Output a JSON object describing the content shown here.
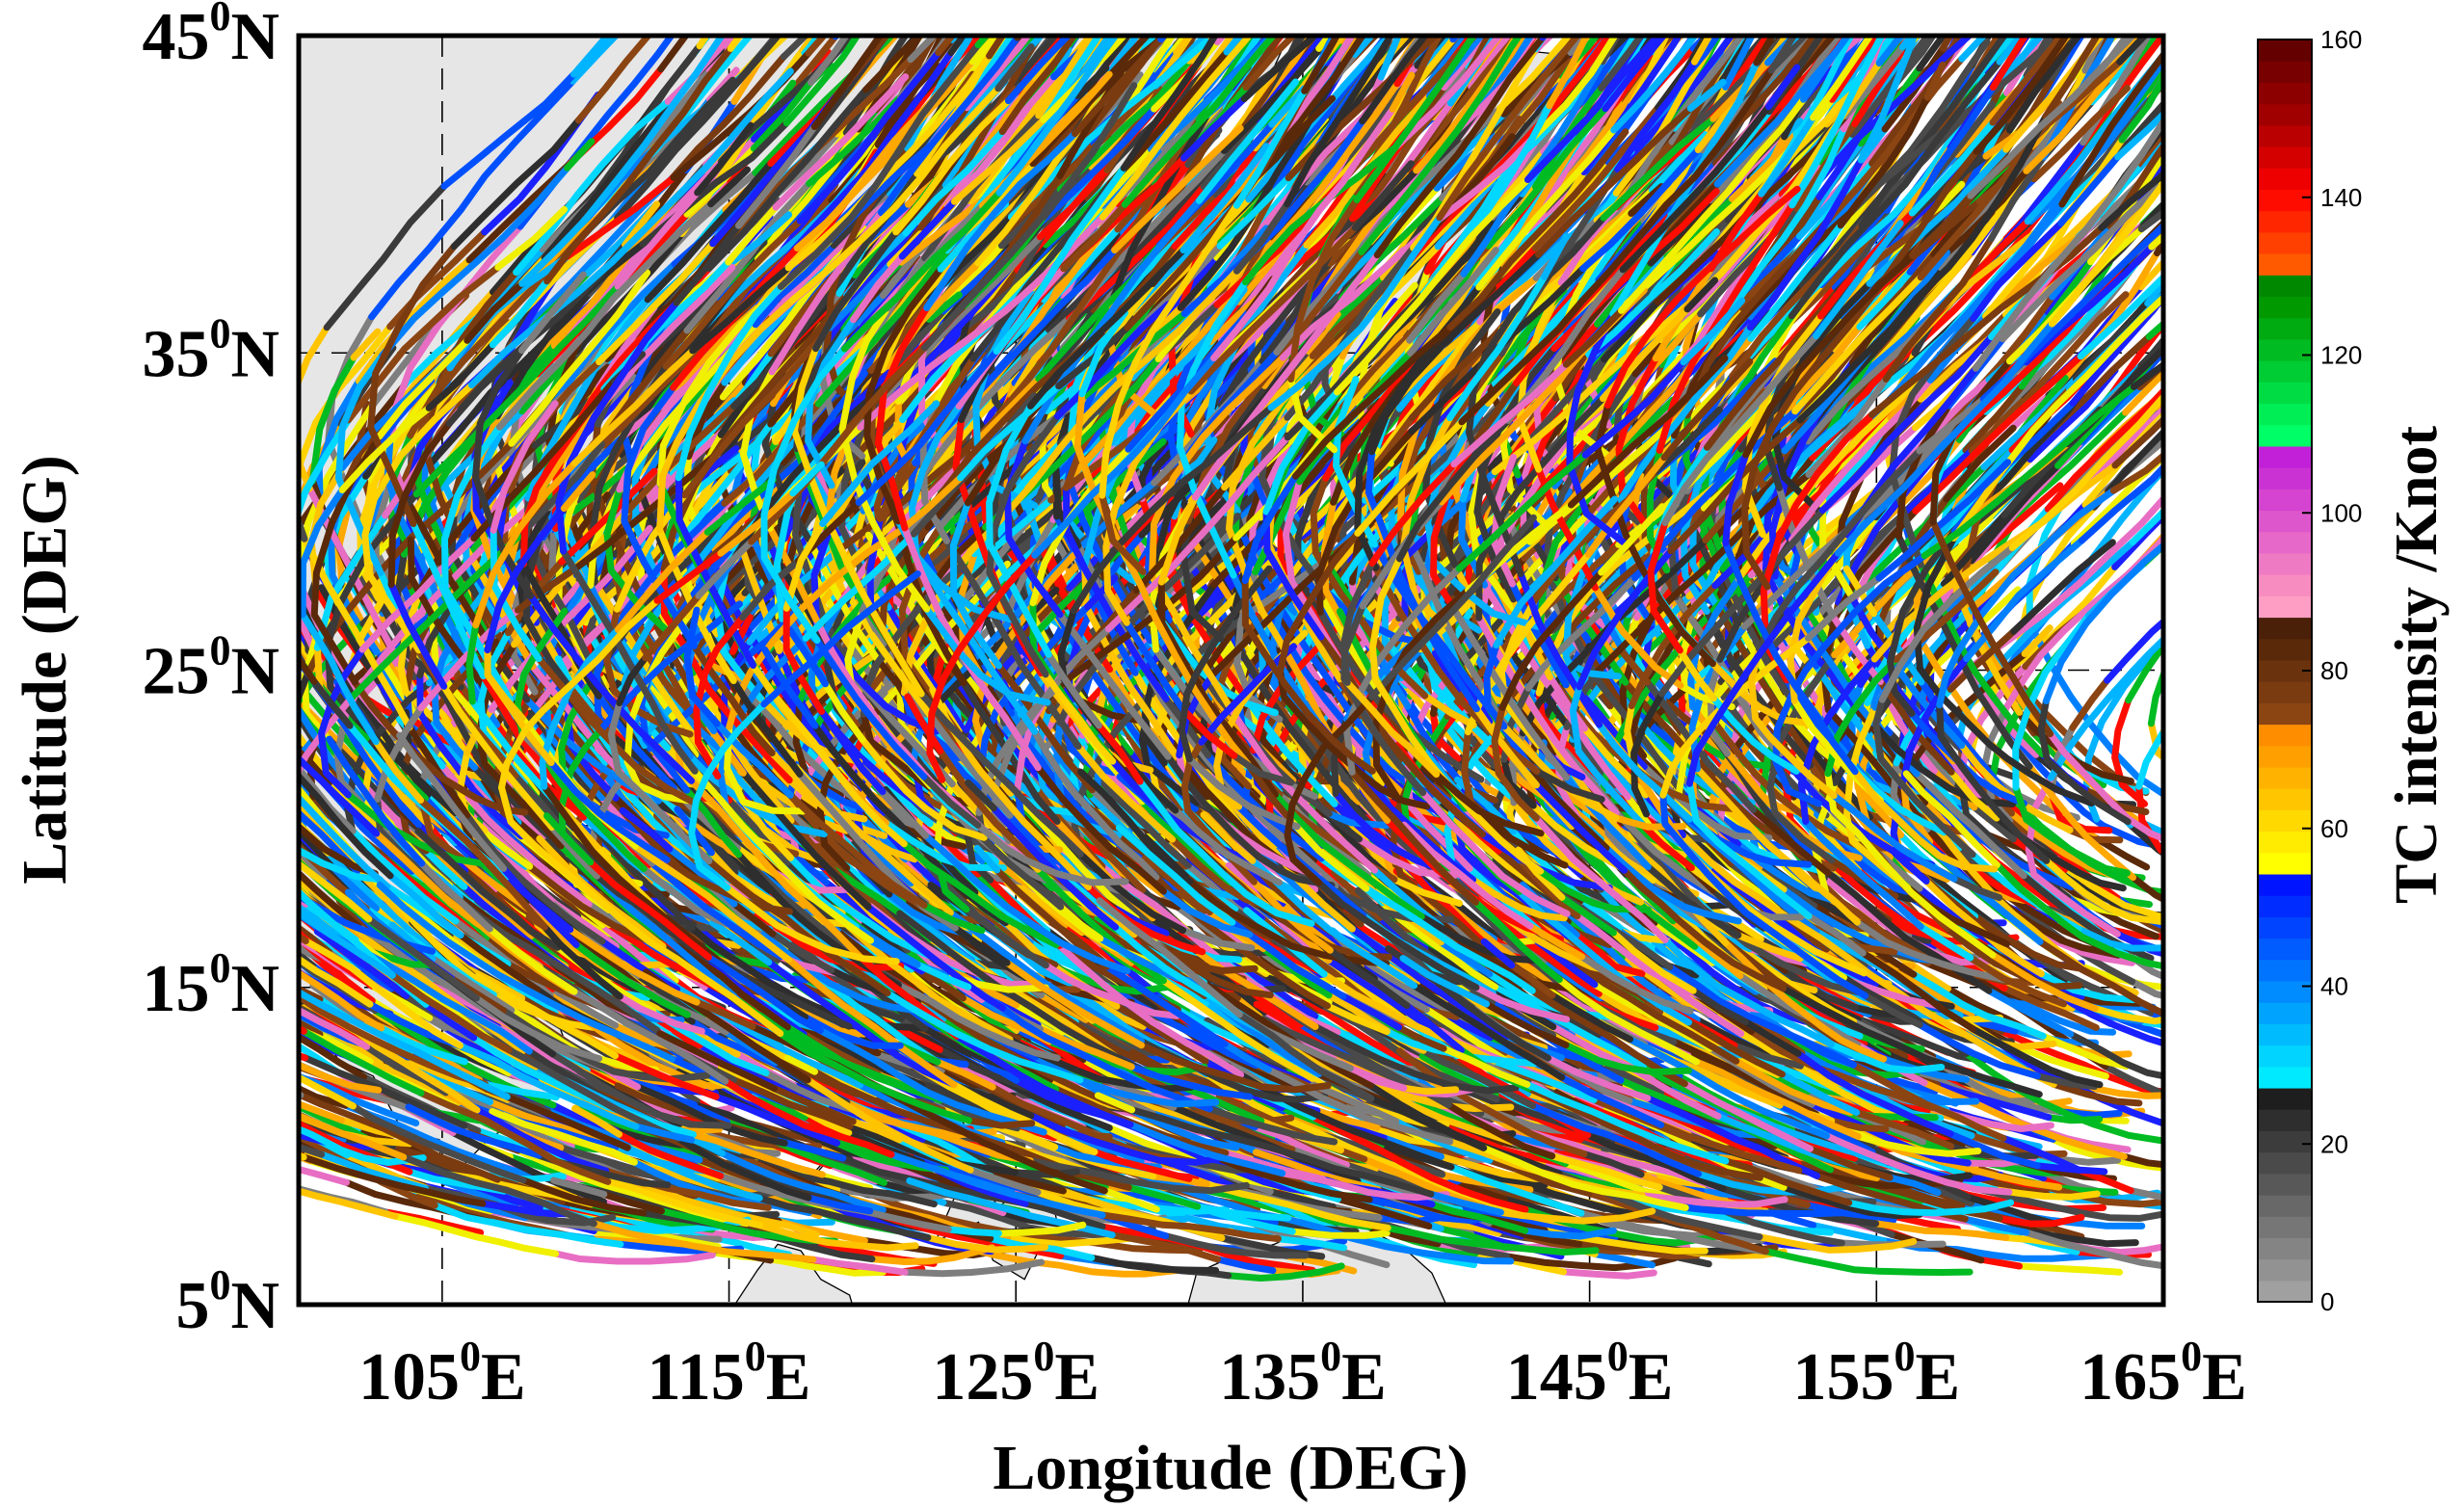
{
  "chart_data": {
    "type": "line",
    "x_axis": {
      "label": "Longitude (DEG)",
      "range": [
        100,
        165
      ],
      "ticks": [
        {
          "value": 105,
          "label": "105",
          "sup": "0",
          "suffix": "E"
        },
        {
          "value": 115,
          "label": "115",
          "sup": "0",
          "suffix": "E"
        },
        {
          "value": 125,
          "label": "125",
          "sup": "0",
          "suffix": "E"
        },
        {
          "value": 135,
          "label": "135",
          "sup": "0",
          "suffix": "E"
        },
        {
          "value": 145,
          "label": "145",
          "sup": "0",
          "suffix": "E"
        },
        {
          "value": 155,
          "label": "155",
          "sup": "0",
          "suffix": "E"
        },
        {
          "value": 165,
          "label": "165",
          "sup": "0",
          "suffix": "E"
        }
      ]
    },
    "y_axis": {
      "label": "Latitude (DEG)",
      "range": [
        5,
        45
      ],
      "ticks": [
        {
          "value": 5,
          "label": "5",
          "sup": "0",
          "suffix": "N"
        },
        {
          "value": 15,
          "label": "15",
          "sup": "0",
          "suffix": "N"
        },
        {
          "value": 25,
          "label": "25",
          "sup": "0",
          "suffix": "N"
        },
        {
          "value": 35,
          "label": "35",
          "sup": "0",
          "suffix": "N"
        },
        {
          "value": 45,
          "label": "45",
          "sup": "0",
          "suffix": "N"
        }
      ]
    },
    "grid": "dashed",
    "land_color": "#e6e6e6",
    "land": [
      [
        [
          100,
          45
        ],
        [
          134.5,
          45
        ],
        [
          134,
          44
        ],
        [
          133,
          43
        ],
        [
          131.8,
          42.7
        ],
        [
          131,
          41.5
        ],
        [
          130,
          40.8
        ],
        [
          129.5,
          39.5
        ],
        [
          128.5,
          38.5
        ],
        [
          128,
          37
        ],
        [
          127,
          35.2
        ],
        [
          126.3,
          34.6
        ],
        [
          126.5,
          35.8
        ],
        [
          126,
          37
        ],
        [
          125,
          37.8
        ],
        [
          124.8,
          38.9
        ],
        [
          124,
          40
        ],
        [
          122.2,
          40.5
        ],
        [
          121.2,
          40.8
        ],
        [
          121.6,
          39.2
        ],
        [
          120,
          39.5
        ],
        [
          118.5,
          39.1
        ],
        [
          117.7,
          38.8
        ],
        [
          118.7,
          37.5
        ],
        [
          119.8,
          37.2
        ],
        [
          120.8,
          37.8
        ],
        [
          122.5,
          37.2
        ],
        [
          121,
          36.3
        ],
        [
          119.5,
          35.3
        ],
        [
          120.3,
          33.8
        ],
        [
          121,
          32.4
        ],
        [
          122,
          31.6
        ],
        [
          121.5,
          30.5
        ],
        [
          122,
          29.6
        ],
        [
          121.5,
          28.5
        ],
        [
          120.5,
          27.3
        ],
        [
          119.7,
          25.9
        ],
        [
          118.5,
          24.6
        ],
        [
          117,
          23.5
        ],
        [
          115,
          22.7
        ],
        [
          113.6,
          22.3
        ],
        [
          112,
          21.7
        ],
        [
          110.6,
          21.2
        ],
        [
          110.2,
          20.3
        ],
        [
          109.8,
          21.5
        ],
        [
          108.5,
          21.7
        ],
        [
          107,
          21
        ],
        [
          106.4,
          20.3
        ],
        [
          105.7,
          19
        ],
        [
          106.4,
          17.7
        ],
        [
          107.3,
          16.5
        ],
        [
          108.4,
          15.3
        ],
        [
          109.2,
          13.5
        ],
        [
          109.2,
          11.8
        ],
        [
          108,
          10.9
        ],
        [
          106.7,
          10.3
        ],
        [
          105,
          8.7
        ],
        [
          104.9,
          10.2
        ],
        [
          103.6,
          10.5
        ],
        [
          102.6,
          12.2
        ],
        [
          101.4,
          12.7
        ],
        [
          100.9,
          13.4
        ],
        [
          100,
          13.5
        ]
      ],
      [
        [
          129.9,
          33
        ],
        [
          130.9,
          31.4
        ],
        [
          131.4,
          31.4
        ],
        [
          132,
          33.3
        ],
        [
          131.2,
          34
        ],
        [
          130.2,
          33.6
        ]
      ],
      [
        [
          132.6,
          33.3
        ],
        [
          133.8,
          32.8
        ],
        [
          134.7,
          33.8
        ],
        [
          134.2,
          34.3
        ],
        [
          133,
          34
        ]
      ],
      [
        [
          130.9,
          34
        ],
        [
          132.3,
          34.4
        ],
        [
          133.9,
          34.4
        ],
        [
          135.2,
          33.9
        ],
        [
          135.8,
          33.5
        ],
        [
          136.8,
          34.2
        ],
        [
          137.4,
          34.6
        ],
        [
          138.8,
          34.7
        ],
        [
          139.8,
          35
        ],
        [
          140.9,
          35.7
        ],
        [
          140.6,
          36.9
        ],
        [
          141,
          38.2
        ],
        [
          141.5,
          39.8
        ],
        [
          141.4,
          41.4
        ],
        [
          140,
          40.7
        ],
        [
          139.8,
          39.8
        ],
        [
          139.9,
          38.5
        ],
        [
          139.1,
          37.7
        ],
        [
          137.3,
          36.8
        ],
        [
          136.9,
          37.2
        ],
        [
          136.2,
          36.1
        ],
        [
          135.2,
          35.7
        ],
        [
          133.1,
          35.6
        ],
        [
          131.5,
          34.6
        ]
      ],
      [
        [
          140,
          41.5
        ],
        [
          140.9,
          41.8
        ],
        [
          141.8,
          42.7
        ],
        [
          143.2,
          42
        ],
        [
          145.3,
          43.3
        ],
        [
          145.2,
          44.3
        ],
        [
          143,
          44.5
        ],
        [
          141.9,
          45
        ],
        [
          141.5,
          45
        ],
        [
          141.7,
          43.3
        ],
        [
          140.6,
          43.2
        ],
        [
          140.1,
          42.4
        ]
      ],
      [
        [
          120.7,
          21.9
        ],
        [
          121.9,
          24.5
        ],
        [
          121.6,
          25.3
        ],
        [
          120.9,
          25
        ],
        [
          120.2,
          23.5
        ]
      ],
      [
        [
          108.6,
          19.2
        ],
        [
          109.3,
          18.2
        ],
        [
          110.3,
          18.6
        ],
        [
          111,
          19.7
        ],
        [
          110.6,
          20.1
        ],
        [
          109.8,
          20.1
        ]
      ],
      [
        [
          120.6,
          18.5
        ],
        [
          122.2,
          18.5
        ],
        [
          122,
          17
        ],
        [
          121.7,
          15.9
        ],
        [
          122.5,
          14.2
        ],
        [
          123.9,
          13.8
        ],
        [
          124,
          12.6
        ],
        [
          122.9,
          13.2
        ],
        [
          121.8,
          14
        ],
        [
          120.6,
          14.4
        ],
        [
          120,
          15.6
        ],
        [
          120.3,
          16.7
        ]
      ],
      [
        [
          125,
          12.5
        ],
        [
          125.7,
          11
        ],
        [
          125.3,
          10
        ],
        [
          124.5,
          10.5
        ],
        [
          124.6,
          11.5
        ]
      ],
      [
        [
          121.9,
          11.9
        ],
        [
          123.3,
          10.6
        ],
        [
          122.6,
          9.9
        ],
        [
          122.1,
          10.5
        ]
      ],
      [
        [
          123.3,
          9.3
        ],
        [
          124.4,
          8.1
        ],
        [
          126.1,
          9.1
        ],
        [
          126.5,
          7.3
        ],
        [
          125.9,
          6.9
        ],
        [
          125.3,
          5.8
        ],
        [
          124.2,
          6.4
        ],
        [
          123.7,
          7.6
        ],
        [
          122.2,
          7
        ]
      ],
      [
        [
          117.2,
          8.4
        ],
        [
          118.8,
          10
        ],
        [
          119.6,
          11
        ],
        [
          119.2,
          10.3
        ],
        [
          117.8,
          8.9
        ]
      ],
      [
        [
          109.7,
          5
        ],
        [
          110.3,
          1.8
        ],
        [
          110.1,
          5
        ]
      ],
      [
        [
          115.2,
          5
        ],
        [
          116,
          6.1
        ],
        [
          116.7,
          6.9
        ],
        [
          117.5,
          6.7
        ],
        [
          118.2,
          5.8
        ],
        [
          119.2,
          5.3
        ],
        [
          119.3,
          5
        ]
      ],
      [
        [
          131,
          5
        ],
        [
          131.3,
          6
        ],
        [
          132.5,
          6.5
        ],
        [
          134,
          6.9
        ],
        [
          135.5,
          7.5
        ],
        [
          137,
          7.5
        ],
        [
          138.5,
          6.8
        ],
        [
          139.5,
          6
        ],
        [
          140,
          5
        ]
      ]
    ],
    "colorbar": {
      "label": "TC intensity /Knot",
      "range": [
        0,
        160
      ],
      "ticks": [
        "0",
        "20",
        "40",
        "60",
        "80",
        "100",
        "120",
        "140",
        "160"
      ],
      "colors": [
        "#a0a0a0",
        "#929292",
        "#848484",
        "#767676",
        "#686868",
        "#585858",
        "#4a4a4a",
        "#3c3c3c",
        "#2e2e2e",
        "#1e1e1e",
        "#00eaff",
        "#00d4ff",
        "#00bcff",
        "#00a4ff",
        "#008cff",
        "#0074ff",
        "#005cff",
        "#0044ff",
        "#002cff",
        "#0014ff",
        "#ffff00",
        "#ffec00",
        "#ffd900",
        "#ffc600",
        "#ffb300",
        "#ffa000",
        "#ff8d00",
        "#8b4513",
        "#7a3b10",
        "#6a320d",
        "#5a290a",
        "#4a2008",
        "#ff9ec4",
        "#f78cc0",
        "#ef7ac4",
        "#e668c8",
        "#dd56cc",
        "#d444d0",
        "#cb32d4",
        "#c220d8",
        "#00ff66",
        "#00ee55",
        "#00dd44",
        "#00cc33",
        "#00bb22",
        "#00aa11",
        "#009900",
        "#008800",
        "#ff5a00",
        "#ff4000",
        "#ff2600",
        "#ff0c00",
        "#ee0000",
        "#d40000",
        "#ba0000",
        "#a00000",
        "#8c0000",
        "#780000",
        "#640000"
      ]
    },
    "track_colors": [
      "#ffc400",
      "#ffa800",
      "#ffd300",
      "#3a3a3a",
      "#4a4a4a",
      "#2e2e2e",
      "#00d8ff",
      "#00b4ff",
      "#0080ff",
      "#0050ff",
      "#1a20ff",
      "#7a3b10",
      "#5a290a",
      "#8b4513",
      "#e86ec4",
      "#00bb22",
      "#f0f000",
      "#ff0c00",
      "#7e7e7e"
    ],
    "n_tracks": 1450
  }
}
